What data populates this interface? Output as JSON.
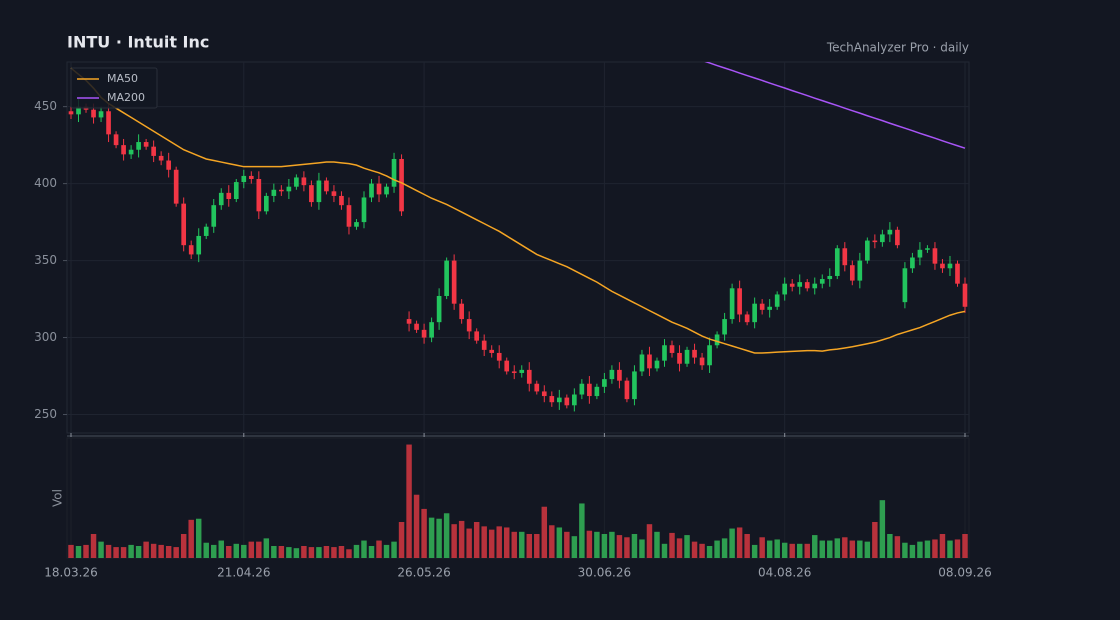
{
  "chart_data": {
    "type": "candlestick",
    "title": "INTU  ·  Intuit Inc",
    "subtitle": "TechAnalyzer Pro · daily",
    "volume_label": "Vol",
    "categories": [
      "18.03.26",
      null,
      null,
      null,
      null,
      null,
      null,
      null,
      null,
      null,
      null,
      null,
      null,
      null,
      null,
      null,
      null,
      null,
      null,
      null,
      null,
      null,
      null,
      "21.04.26",
      null,
      null,
      null,
      null,
      null,
      null,
      null,
      null,
      null,
      null,
      null,
      null,
      null,
      null,
      null,
      null,
      null,
      null,
      null,
      null,
      null,
      null,
      null,
      "26.05.26",
      null,
      null,
      null,
      null,
      null,
      null,
      null,
      null,
      null,
      null,
      null,
      null,
      null,
      null,
      null,
      null,
      null,
      null,
      null,
      null,
      null,
      null,
      null,
      "30.06.26",
      null,
      null,
      null,
      null,
      null,
      null,
      null,
      null,
      null,
      null,
      null,
      null,
      null,
      null,
      null,
      null,
      null,
      null,
      null,
      null,
      null,
      null,
      null,
      "04.08.26",
      null,
      null,
      null,
      null,
      null,
      null,
      null,
      null,
      null,
      null,
      null,
      null,
      null,
      null,
      null,
      null,
      null,
      null,
      null,
      null,
      null,
      null,
      null,
      "08.09.26"
    ],
    "open": [
      447,
      445,
      450,
      448,
      443,
      447,
      432,
      425,
      419,
      422,
      427,
      424,
      418,
      415,
      409,
      387,
      360,
      354,
      366,
      372,
      386,
      394,
      390,
      401,
      405,
      403,
      382,
      392,
      396,
      395,
      398,
      404,
      399,
      388,
      402,
      395,
      392,
      386,
      372,
      375,
      391,
      400,
      393,
      398,
      416,
      312,
      309,
      305,
      300,
      310,
      327,
      350,
      322,
      312,
      304,
      298,
      292,
      290,
      285,
      278,
      277,
      279,
      270,
      265,
      262,
      258,
      261,
      256,
      263,
      270,
      262,
      268,
      273,
      279,
      272,
      260,
      278,
      289,
      280,
      285,
      295,
      290,
      283,
      292,
      287,
      282,
      295,
      302,
      312,
      332,
      315,
      310,
      322,
      318,
      320,
      328,
      335,
      333,
      336,
      332,
      335,
      338,
      340,
      358,
      347,
      337,
      350,
      363,
      362,
      367,
      370,
      323,
      345,
      352,
      357,
      358,
      348,
      345,
      348,
      335
    ],
    "high": [
      450,
      455,
      452,
      452,
      450,
      452,
      434,
      429,
      425,
      432,
      429,
      428,
      421,
      420,
      411,
      391,
      363,
      371,
      374,
      390,
      397,
      399,
      403,
      409,
      408,
      408,
      394,
      400,
      399,
      403,
      406,
      408,
      402,
      407,
      404,
      399,
      395,
      391,
      377,
      395,
      403,
      405,
      400,
      420,
      419,
      317,
      311,
      309,
      313,
      332,
      352,
      354,
      325,
      317,
      306,
      302,
      295,
      295,
      287,
      282,
      282,
      284,
      272,
      269,
      265,
      266,
      263,
      267,
      273,
      275,
      270,
      277,
      282,
      284,
      274,
      282,
      292,
      294,
      287,
      299,
      298,
      295,
      294,
      296,
      290,
      300,
      304,
      316,
      335,
      337,
      317,
      326,
      325,
      325,
      330,
      339,
      338,
      341,
      338,
      339,
      341,
      345,
      360,
      362,
      350,
      355,
      365,
      367,
      370,
      375,
      372,
      349,
      355,
      362,
      360,
      362,
      351,
      353,
      350,
      339
    ],
    "low": [
      442,
      440,
      446,
      439,
      440,
      427,
      423,
      415,
      416,
      417,
      422,
      414,
      412,
      404,
      385,
      356,
      351,
      349,
      364,
      368,
      383,
      385,
      388,
      397,
      400,
      377,
      380,
      388,
      392,
      390,
      396,
      395,
      385,
      383,
      393,
      388,
      383,
      367,
      370,
      371,
      388,
      388,
      391,
      394,
      379,
      304,
      303,
      296,
      297,
      305,
      325,
      318,
      309,
      299,
      296,
      288,
      287,
      280,
      276,
      273,
      274,
      265,
      263,
      258,
      255,
      253,
      254,
      252,
      260,
      257,
      260,
      264,
      270,
      267,
      258,
      256,
      275,
      275,
      278,
      281,
      287,
      278,
      281,
      283,
      279,
      277,
      293,
      298,
      309,
      310,
      308,
      306,
      315,
      313,
      318,
      324,
      330,
      328,
      330,
      328,
      332,
      333,
      338,
      343,
      334,
      332,
      348,
      358,
      359,
      362,
      358,
      319,
      342,
      347,
      355,
      344,
      342,
      340,
      333,
      316
    ],
    "close": [
      445,
      450,
      448,
      443,
      447,
      432,
      425,
      419,
      422,
      427,
      424,
      418,
      415,
      409,
      387,
      360,
      354,
      366,
      372,
      386,
      394,
      390,
      401,
      405,
      403,
      382,
      392,
      396,
      395,
      398,
      404,
      399,
      388,
      402,
      395,
      392,
      386,
      372,
      375,
      391,
      400,
      393,
      398,
      416,
      382,
      309,
      305,
      300,
      310,
      327,
      350,
      322,
      312,
      304,
      298,
      292,
      290,
      285,
      278,
      277,
      279,
      270,
      265,
      262,
      258,
      261,
      256,
      263,
      270,
      262,
      268,
      273,
      279,
      272,
      260,
      278,
      289,
      280,
      285,
      295,
      290,
      283,
      292,
      287,
      282,
      295,
      302,
      312,
      332,
      315,
      310,
      322,
      318,
      320,
      328,
      335,
      333,
      336,
      332,
      335,
      338,
      340,
      358,
      347,
      337,
      350,
      363,
      362,
      367,
      370,
      360,
      345,
      352,
      357,
      358,
      348,
      345,
      348,
      335,
      320
    ],
    "volume": [
      12,
      11,
      12,
      22,
      15,
      12,
      10,
      10,
      12,
      11,
      15,
      13,
      12,
      11,
      10,
      22,
      35,
      36,
      14,
      12,
      16,
      11,
      13,
      12,
      15,
      15,
      18,
      11,
      11,
      10,
      9,
      11,
      10,
      10,
      11,
      10,
      11,
      8,
      12,
      16,
      11,
      16,
      12,
      15,
      33,
      104,
      58,
      45,
      37,
      36,
      41,
      31,
      34,
      27,
      33,
      29,
      26,
      29,
      28,
      24,
      24,
      22,
      22,
      47,
      30,
      28,
      24,
      20,
      50,
      25,
      24,
      22,
      24,
      21,
      19,
      22,
      17,
      31,
      24,
      13,
      23,
      18,
      21,
      15,
      13,
      11,
      16,
      18,
      27,
      28,
      22,
      12,
      19,
      16,
      17,
      14,
      13,
      13,
      13,
      21,
      16,
      16,
      18,
      19,
      16,
      16,
      15,
      33,
      53,
      22,
      20,
      14,
      12,
      15,
      16,
      17,
      22,
      16,
      17,
      22
    ],
    "series": [
      {
        "name": "MA50",
        "color": "#f5a524",
        "values": [
          475,
          471,
          467,
          462,
          456,
          452,
          449,
          446,
          443,
          440,
          437,
          434,
          431,
          428,
          425,
          422,
          420,
          418,
          416,
          415,
          414,
          413,
          412,
          411,
          411,
          411,
          411,
          411,
          411,
          411.5,
          412,
          412.5,
          413,
          413.5,
          414,
          414,
          413.5,
          413,
          412,
          410,
          408.5,
          407,
          405,
          402.5,
          400.5,
          398,
          395.5,
          393,
          390.5,
          388.5,
          386.5,
          384,
          381.5,
          379,
          376.5,
          374,
          371.5,
          369,
          366,
          363,
          360,
          357,
          354,
          352,
          350,
          348,
          346,
          343.5,
          341,
          338.5,
          336,
          333,
          330,
          327.5,
          325,
          322.5,
          320,
          317.5,
          315,
          312.5,
          310,
          308,
          306,
          303.5,
          301,
          299,
          297.5,
          296,
          294.5,
          293,
          291.5,
          290,
          290,
          290.2,
          290.5,
          290.8,
          291,
          291.3,
          291.5,
          291.5,
          291.2,
          292,
          292.5,
          293.2,
          294,
          295,
          296,
          297,
          298.5,
          300,
          302,
          303.5,
          305,
          306.5,
          308.5,
          310.5,
          312.5,
          314.5,
          316,
          317
        ]
      },
      {
        "name": "MA200",
        "color": "#a855f7",
        "values": [
          null,
          null,
          null,
          null,
          null,
          null,
          null,
          null,
          null,
          null,
          null,
          null,
          null,
          null,
          null,
          null,
          null,
          null,
          null,
          null,
          null,
          null,
          null,
          null,
          null,
          null,
          null,
          null,
          null,
          null,
          null,
          null,
          null,
          null,
          null,
          null,
          null,
          null,
          null,
          null,
          null,
          null,
          null,
          null,
          null,
          null,
          null,
          null,
          null,
          null,
          null,
          null,
          null,
          null,
          null,
          null,
          null,
          null,
          null,
          null,
          null,
          null,
          null,
          null,
          null,
          null,
          null,
          null,
          null,
          null,
          null,
          null,
          null,
          null,
          null,
          null,
          null,
          null,
          null,
          null,
          null,
          null,
          null,
          null,
          480,
          478.4,
          476.7,
          475.1,
          473.5,
          471.8,
          470.2,
          468.6,
          467,
          465.3,
          463.7,
          462.1,
          460.4,
          458.8,
          457.2,
          455.5,
          453.9,
          452.3,
          450.7,
          449,
          447.4,
          445.8,
          444.1,
          442.5,
          440.9,
          439.2,
          437.6,
          436,
          434.4,
          432.7,
          431.1,
          429.5,
          427.8,
          426.2,
          424.6,
          423
        ]
      }
    ],
    "up_color": "#22c55e",
    "down_color": "#f23645",
    "volume_up_color": "#2e9e50",
    "volume_down_color": "#b8323c",
    "ylim": [
      238,
      479
    ],
    "yticks": [
      250,
      300,
      350,
      400,
      450
    ],
    "volume_ylim": [
      0,
      110
    ],
    "grid": true,
    "legend": "upper left"
  }
}
